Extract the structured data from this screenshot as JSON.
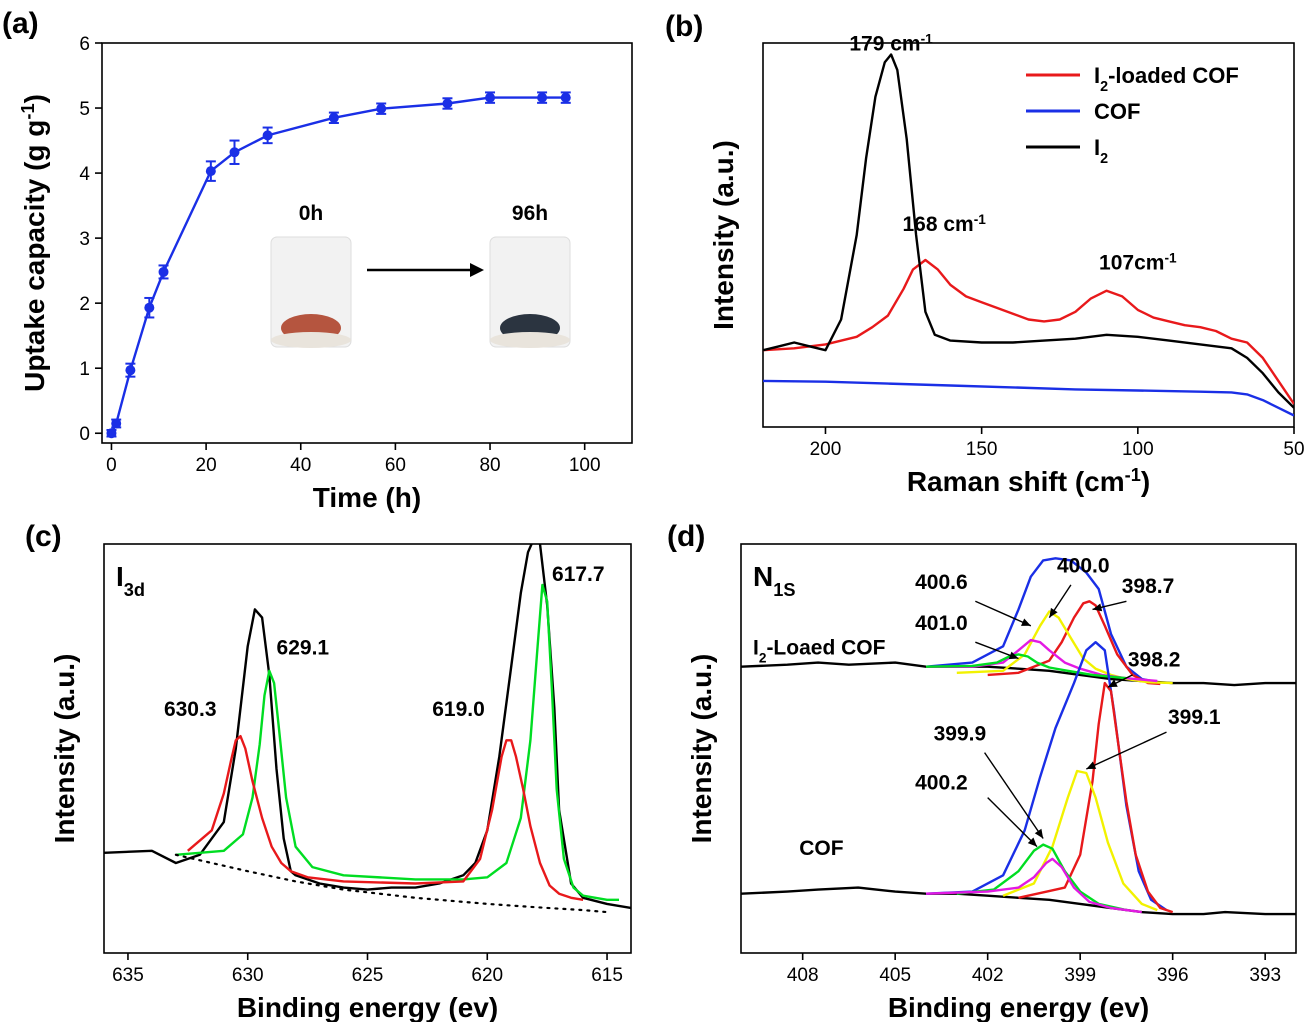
{
  "chart_data": [
    {
      "panel": "(a)",
      "type": "line",
      "xlabel": "Time (h)",
      "ylabel": "Uptake capacity (g g",
      "ylabel_sup": "-1",
      "ylabel_end": ")",
      "xlim": [
        -2,
        110
      ],
      "ylim": [
        -0.15,
        6
      ],
      "xticks": [
        0,
        20,
        40,
        60,
        80,
        100
      ],
      "yticks": [
        0,
        1,
        2,
        3,
        4,
        5,
        6
      ],
      "series": [
        {
          "color": "#1a2fe6",
          "x": [
            0,
            1,
            4,
            8,
            11,
            21,
            26,
            33,
            47,
            57,
            71,
            80,
            91,
            96
          ],
          "y": [
            0.0,
            0.15,
            0.97,
            1.93,
            2.48,
            4.03,
            4.32,
            4.58,
            4.85,
            4.99,
            5.07,
            5.16,
            5.16,
            5.16
          ],
          "err": [
            0.05,
            0.06,
            0.1,
            0.15,
            0.1,
            0.15,
            0.18,
            0.12,
            0.08,
            0.08,
            0.08,
            0.08,
            0.08,
            0.08
          ]
        }
      ],
      "inset": {
        "label_start": "0h",
        "label_end": "96h",
        "color_start": "#b5553f",
        "color_end": "#2b3440"
      }
    },
    {
      "panel": "(b)",
      "type": "line",
      "xlabel": "Raman shift (cm",
      "xlabel_sup": "-1",
      "xlabel_end": ")",
      "ylabel": "Intensity (a.u.)",
      "xlim": [
        220,
        50
      ],
      "ylim": [
        0,
        10
      ],
      "xticks": [
        200,
        150,
        100,
        50
      ],
      "legend": [
        {
          "name": "I",
          "sub": "2",
          "rest": "-loaded COF",
          "color": "#e8191b"
        },
        {
          "name": "COF",
          "sub": "",
          "rest": "",
          "color": "#1a2fe6"
        },
        {
          "name": "I",
          "sub": "2",
          "rest": "",
          "color": "#000000"
        }
      ],
      "series": [
        {
          "color": "#e8191b",
          "x": [
            220,
            210,
            200,
            190,
            185,
            180,
            175,
            172,
            168,
            164,
            160,
            155,
            150,
            145,
            140,
            135,
            130,
            125,
            120,
            115,
            110,
            105,
            100,
            95,
            90,
            85,
            80,
            75,
            70,
            65,
            60,
            55,
            50
          ],
          "y": [
            2.0,
            2.05,
            2.15,
            2.35,
            2.6,
            2.9,
            3.6,
            4.1,
            4.35,
            4.1,
            3.7,
            3.4,
            3.25,
            3.1,
            2.95,
            2.8,
            2.75,
            2.8,
            3.0,
            3.35,
            3.55,
            3.4,
            3.05,
            2.85,
            2.75,
            2.65,
            2.6,
            2.5,
            2.3,
            2.2,
            1.8,
            1.2,
            0.6
          ]
        },
        {
          "color": "#1a2fe6",
          "x": [
            220,
            200,
            180,
            160,
            140,
            120,
            100,
            80,
            70,
            65,
            60,
            55,
            50
          ],
          "y": [
            1.2,
            1.18,
            1.13,
            1.08,
            1.03,
            0.98,
            0.95,
            0.92,
            0.9,
            0.85,
            0.7,
            0.5,
            0.3
          ]
        },
        {
          "color": "#000000",
          "x": [
            220,
            215,
            210,
            205,
            200,
            195,
            190,
            187,
            184,
            181,
            179,
            177,
            174,
            171,
            168,
            165,
            160,
            150,
            140,
            130,
            120,
            110,
            100,
            90,
            80,
            70,
            65,
            60,
            55,
            50
          ],
          "y": [
            2.0,
            2.1,
            2.2,
            2.1,
            2.0,
            2.8,
            5.0,
            7.0,
            8.6,
            9.5,
            9.7,
            9.3,
            7.5,
            5.0,
            3.0,
            2.4,
            2.25,
            2.2,
            2.2,
            2.25,
            2.3,
            2.4,
            2.35,
            2.25,
            2.15,
            2.05,
            1.8,
            1.4,
            0.9,
            0.5
          ]
        }
      ],
      "annotations": [
        {
          "text": "179 cm",
          "sup": "-1",
          "x": 179,
          "y": 9.8
        },
        {
          "text": "168 cm",
          "sup": "-1",
          "x": 162,
          "y": 5.1
        },
        {
          "text": "107cm",
          "sup": "-1",
          "x": 100,
          "y": 4.1
        }
      ]
    },
    {
      "panel": "(c)",
      "type": "line",
      "title": "I",
      "title_sub": "3d",
      "xlabel": "Binding energy (ev)",
      "ylabel": "Intensity (a.u.)",
      "xlim": [
        636,
        614
      ],
      "ylim": [
        0,
        10
      ],
      "xticks": [
        635,
        630,
        625,
        620,
        615
      ],
      "series": [
        {
          "color": "#000000",
          "role": "raw",
          "x": [
            636,
            634,
            633,
            632,
            631,
            630.5,
            630,
            629.7,
            629.4,
            629.1,
            628.8,
            628.5,
            628.2,
            628,
            627.5,
            627,
            626,
            625,
            624,
            623,
            622,
            621,
            620.5,
            620,
            619.5,
            619,
            618.6,
            618.3,
            618,
            617.8,
            617.5,
            617.2,
            617,
            616.5,
            616,
            615,
            614
          ],
          "y": [
            2.45,
            2.5,
            2.2,
            2.4,
            3.2,
            5.0,
            7.5,
            8.4,
            8.2,
            6.8,
            4.5,
            2.8,
            2.0,
            1.9,
            1.8,
            1.7,
            1.6,
            1.55,
            1.6,
            1.6,
            1.7,
            1.9,
            2.2,
            3.0,
            4.8,
            7.0,
            8.8,
            9.8,
            10.2,
            10.0,
            8.5,
            6.0,
            3.5,
            1.7,
            1.35,
            1.2,
            1.1
          ]
        },
        {
          "color": "#00dd22",
          "role": "fit",
          "x": [
            633,
            631,
            630.2,
            629.8,
            629.5,
            629.3,
            629.1,
            628.9,
            628.7,
            628.4,
            628,
            627.3,
            626,
            623,
            621,
            620,
            619.2,
            618.6,
            618.2,
            617.9,
            617.7,
            617.5,
            617.3,
            617.1,
            616.8,
            616.4,
            616,
            615,
            614.5
          ],
          "y": [
            2.4,
            2.5,
            2.9,
            3.8,
            5.1,
            6.3,
            6.9,
            6.6,
            5.5,
            3.8,
            2.6,
            2.1,
            1.9,
            1.8,
            1.8,
            1.85,
            2.2,
            3.3,
            5.2,
            7.5,
            9.0,
            8.6,
            6.4,
            4.0,
            2.3,
            1.6,
            1.4,
            1.3,
            1.3
          ]
        },
        {
          "color": "#e8191b",
          "role": "fit",
          "x": [
            632.5,
            631.5,
            631,
            630.7,
            630.5,
            630.3,
            630.1,
            629.8,
            629.4,
            629,
            628.6,
            628.2,
            627.5,
            626,
            623,
            621,
            620.3,
            619.8,
            619.4,
            619.2,
            619,
            618.8,
            618.5,
            618.2,
            617.8,
            617.4,
            617,
            616.5,
            616
          ],
          "y": [
            2.5,
            3.0,
            3.9,
            4.7,
            5.2,
            5.3,
            5.0,
            4.2,
            3.3,
            2.6,
            2.2,
            2.0,
            1.85,
            1.75,
            1.7,
            1.75,
            2.3,
            3.5,
            4.8,
            5.2,
            5.2,
            4.8,
            4.0,
            3.1,
            2.2,
            1.65,
            1.45,
            1.35,
            1.3
          ]
        },
        {
          "color": "#000000",
          "role": "baseline",
          "dotted": true,
          "x": [
            633,
            630,
            628,
            626,
            623,
            620,
            618,
            616,
            615
          ],
          "y": [
            2.4,
            2.0,
            1.75,
            1.55,
            1.35,
            1.2,
            1.12,
            1.05,
            1.0
          ]
        }
      ],
      "annotations": [
        {
          "text": "630.3",
          "x": 632.4,
          "y": 5.8
        },
        {
          "text": "629.1",
          "x": 627.7,
          "y": 7.3
        },
        {
          "text": "619.0",
          "x": 621.2,
          "y": 5.8
        },
        {
          "text": "617.7",
          "x": 616.2,
          "y": 9.1
        }
      ]
    },
    {
      "panel": "(d)",
      "type": "line",
      "title": "N",
      "title_sub": "1S",
      "xlabel": "Binding energy (ev)",
      "ylabel": "Intensity (a.u.)",
      "xlim": [
        410,
        392
      ],
      "ylim": [
        0,
        10
      ],
      "xticks": [
        408,
        405,
        402,
        399,
        396,
        393
      ],
      "sample_labels": [
        {
          "text": "I",
          "sub": "2",
          "rest": "-Loaed COF",
          "x": 410,
          "y": 7.3
        },
        {
          "text": "COF",
          "sub": "",
          "rest": "",
          "x": 408.5,
          "y": 2.4
        }
      ],
      "series": [
        {
          "color": "#000000",
          "role": "raw-top",
          "x": [
            410,
            408.5,
            407.5,
            406.5,
            405,
            404,
            403,
            402,
            401,
            400,
            399,
            398,
            397,
            396,
            395,
            394,
            393,
            392
          ],
          "y": [
            7.0,
            7.05,
            7.1,
            7.05,
            7.1,
            7.0,
            7.0,
            7.0,
            6.95,
            6.9,
            6.8,
            6.7,
            6.65,
            6.6,
            6.6,
            6.55,
            6.6,
            6.6
          ]
        },
        {
          "color": "#1a2fe6",
          "role": "env-top",
          "x": [
            404,
            402.5,
            401.5,
            401,
            400.6,
            400.2,
            399.8,
            399.3,
            398.8,
            398.4,
            398,
            397.5,
            397,
            396.5
          ],
          "y": [
            7.0,
            7.1,
            7.5,
            8.4,
            9.2,
            9.6,
            9.65,
            9.6,
            9.3,
            8.9,
            7.8,
            7.0,
            6.7,
            6.62
          ]
        },
        {
          "color": "#e8191b",
          "role": "fit-top",
          "x": [
            402,
            401,
            400,
            399.6,
            399.2,
            398.9,
            398.7,
            398.5,
            398.2,
            397.8,
            397.3,
            396.8,
            396.4
          ],
          "y": [
            6.8,
            6.85,
            7.15,
            7.6,
            8.2,
            8.55,
            8.6,
            8.5,
            8.0,
            7.3,
            6.8,
            6.6,
            6.58
          ]
        },
        {
          "color": "#f2f200",
          "role": "fit-top",
          "x": [
            403,
            401.5,
            400.8,
            400.3,
            400.0,
            399.7,
            399.3,
            398.9,
            398.5,
            398,
            397.5,
            396.8,
            396
          ],
          "y": [
            6.85,
            6.9,
            7.3,
            8.0,
            8.35,
            8.2,
            7.7,
            7.2,
            6.95,
            6.8,
            6.7,
            6.62,
            6.6
          ]
        },
        {
          "color": "#e31ae3",
          "role": "fit-top",
          "x": [
            404,
            402.5,
            401.5,
            401.0,
            400.6,
            400.3,
            400.0,
            399.5,
            399,
            398.3,
            397.5,
            396.5
          ],
          "y": [
            7.0,
            7.0,
            7.1,
            7.4,
            7.65,
            7.6,
            7.4,
            7.1,
            6.95,
            6.8,
            6.72,
            6.65
          ]
        },
        {
          "color": "#00dd22",
          "role": "fit-top",
          "x": [
            404,
            402.5,
            401.7,
            401.3,
            401.0,
            400.7,
            400.4,
            400,
            399.4,
            398.6,
            397.5
          ],
          "y": [
            7.0,
            7.02,
            7.1,
            7.25,
            7.3,
            7.25,
            7.1,
            6.98,
            6.9,
            6.8,
            6.72
          ]
        },
        {
          "color": "#000000",
          "role": "raw-bottom",
          "x": [
            410,
            408.5,
            407.5,
            406.2,
            405,
            404,
            403,
            402,
            401,
            400,
            399,
            398,
            397,
            396,
            395,
            394.3,
            393,
            392
          ],
          "y": [
            1.45,
            1.5,
            1.55,
            1.6,
            1.5,
            1.45,
            1.45,
            1.4,
            1.35,
            1.3,
            1.2,
            1.1,
            1.0,
            0.95,
            0.95,
            1.0,
            0.95,
            0.95
          ]
        },
        {
          "color": "#1a2fe6",
          "role": "env-bottom",
          "x": [
            404,
            402.5,
            401.5,
            400.8,
            400.3,
            399.8,
            399.2,
            398.8,
            398.5,
            398.2,
            397.9,
            397.5,
            397.1,
            396.7,
            396.2
          ],
          "y": [
            1.45,
            1.5,
            1.9,
            3.0,
            4.3,
            5.5,
            6.6,
            7.4,
            7.6,
            7.4,
            5.9,
            3.6,
            2.0,
            1.3,
            1.05
          ]
        },
        {
          "color": "#e8191b",
          "role": "fit-bottom",
          "x": [
            401,
            399.5,
            399,
            398.6,
            398.4,
            398.2,
            398.0,
            397.8,
            397.5,
            397.2,
            396.8,
            396.4,
            396
          ],
          "y": [
            1.35,
            1.6,
            2.4,
            4.2,
            5.6,
            6.6,
            6.4,
            5.3,
            3.7,
            2.4,
            1.5,
            1.1,
            1.0
          ]
        },
        {
          "color": "#f2f200",
          "role": "fit-bottom",
          "x": [
            401.5,
            400.5,
            399.9,
            399.4,
            399.1,
            398.8,
            398.5,
            398.1,
            397.6,
            397,
            396.5
          ],
          "y": [
            1.4,
            1.7,
            2.6,
            3.8,
            4.45,
            4.4,
            3.8,
            2.7,
            1.7,
            1.2,
            1.05
          ]
        },
        {
          "color": "#00dd22",
          "role": "fit-bottom",
          "x": [
            403,
            401.8,
            401,
            400.5,
            400.2,
            399.9,
            399.5,
            399,
            398.4,
            397.5
          ],
          "y": [
            1.45,
            1.55,
            2.0,
            2.5,
            2.65,
            2.55,
            2.0,
            1.5,
            1.2,
            1.05
          ]
        },
        {
          "color": "#e31ae3",
          "role": "fit-bottom",
          "x": [
            404,
            402,
            401,
            400.5,
            400.1,
            399.9,
            399.6,
            399.2,
            398.7,
            398,
            397
          ],
          "y": [
            1.45,
            1.5,
            1.6,
            1.85,
            2.2,
            2.3,
            2.1,
            1.6,
            1.25,
            1.1,
            1.0
          ]
        }
      ],
      "annotations": [
        {
          "text": "400.6",
          "x": 403.5,
          "y": 8.9
        },
        {
          "text": "400.0",
          "x": 398.9,
          "y": 9.3
        },
        {
          "text": "398.7",
          "x": 396.8,
          "y": 8.8
        },
        {
          "text": "401.0",
          "x": 403.5,
          "y": 7.9
        },
        {
          "text": "398.2",
          "x": 396.6,
          "y": 7.0
        },
        {
          "text": "399.1",
          "x": 395.3,
          "y": 5.6
        },
        {
          "text": "399.9",
          "x": 402.9,
          "y": 5.2
        },
        {
          "text": "400.2",
          "x": 403.5,
          "y": 4.0
        }
      ]
    }
  ]
}
